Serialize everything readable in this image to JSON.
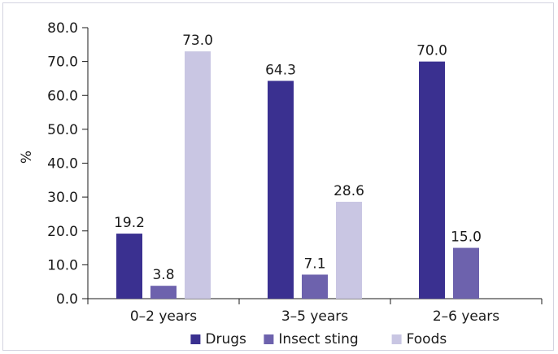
{
  "chart_data": {
    "type": "bar",
    "categories": [
      "0–2 years",
      "3–5 years",
      "2–6 years"
    ],
    "series": [
      {
        "name": "Drugs",
        "color": "#3a3090",
        "values": [
          19.2,
          64.3,
          70.0
        ]
      },
      {
        "name": "Insect sting",
        "color": "#6d62ad",
        "values": [
          3.8,
          7.1,
          15.0
        ]
      },
      {
        "name": "Foods",
        "color": "#c9c6e3",
        "values": [
          73.0,
          28.6,
          null
        ]
      }
    ],
    "ylabel": "%",
    "ylim": [
      0,
      80
    ],
    "yticks": [
      "0.0",
      "10.0",
      "20.0",
      "30.0",
      "40.0",
      "50.0",
      "60.0",
      "70.0",
      "80.0"
    ],
    "value_labels": [
      [
        "19.2",
        "3.8",
        "73.0"
      ],
      [
        "64.3",
        "7.1",
        "28.6"
      ],
      [
        "70.0",
        "15.0",
        null
      ]
    ],
    "legend_position": "bottom",
    "grid": false
  }
}
